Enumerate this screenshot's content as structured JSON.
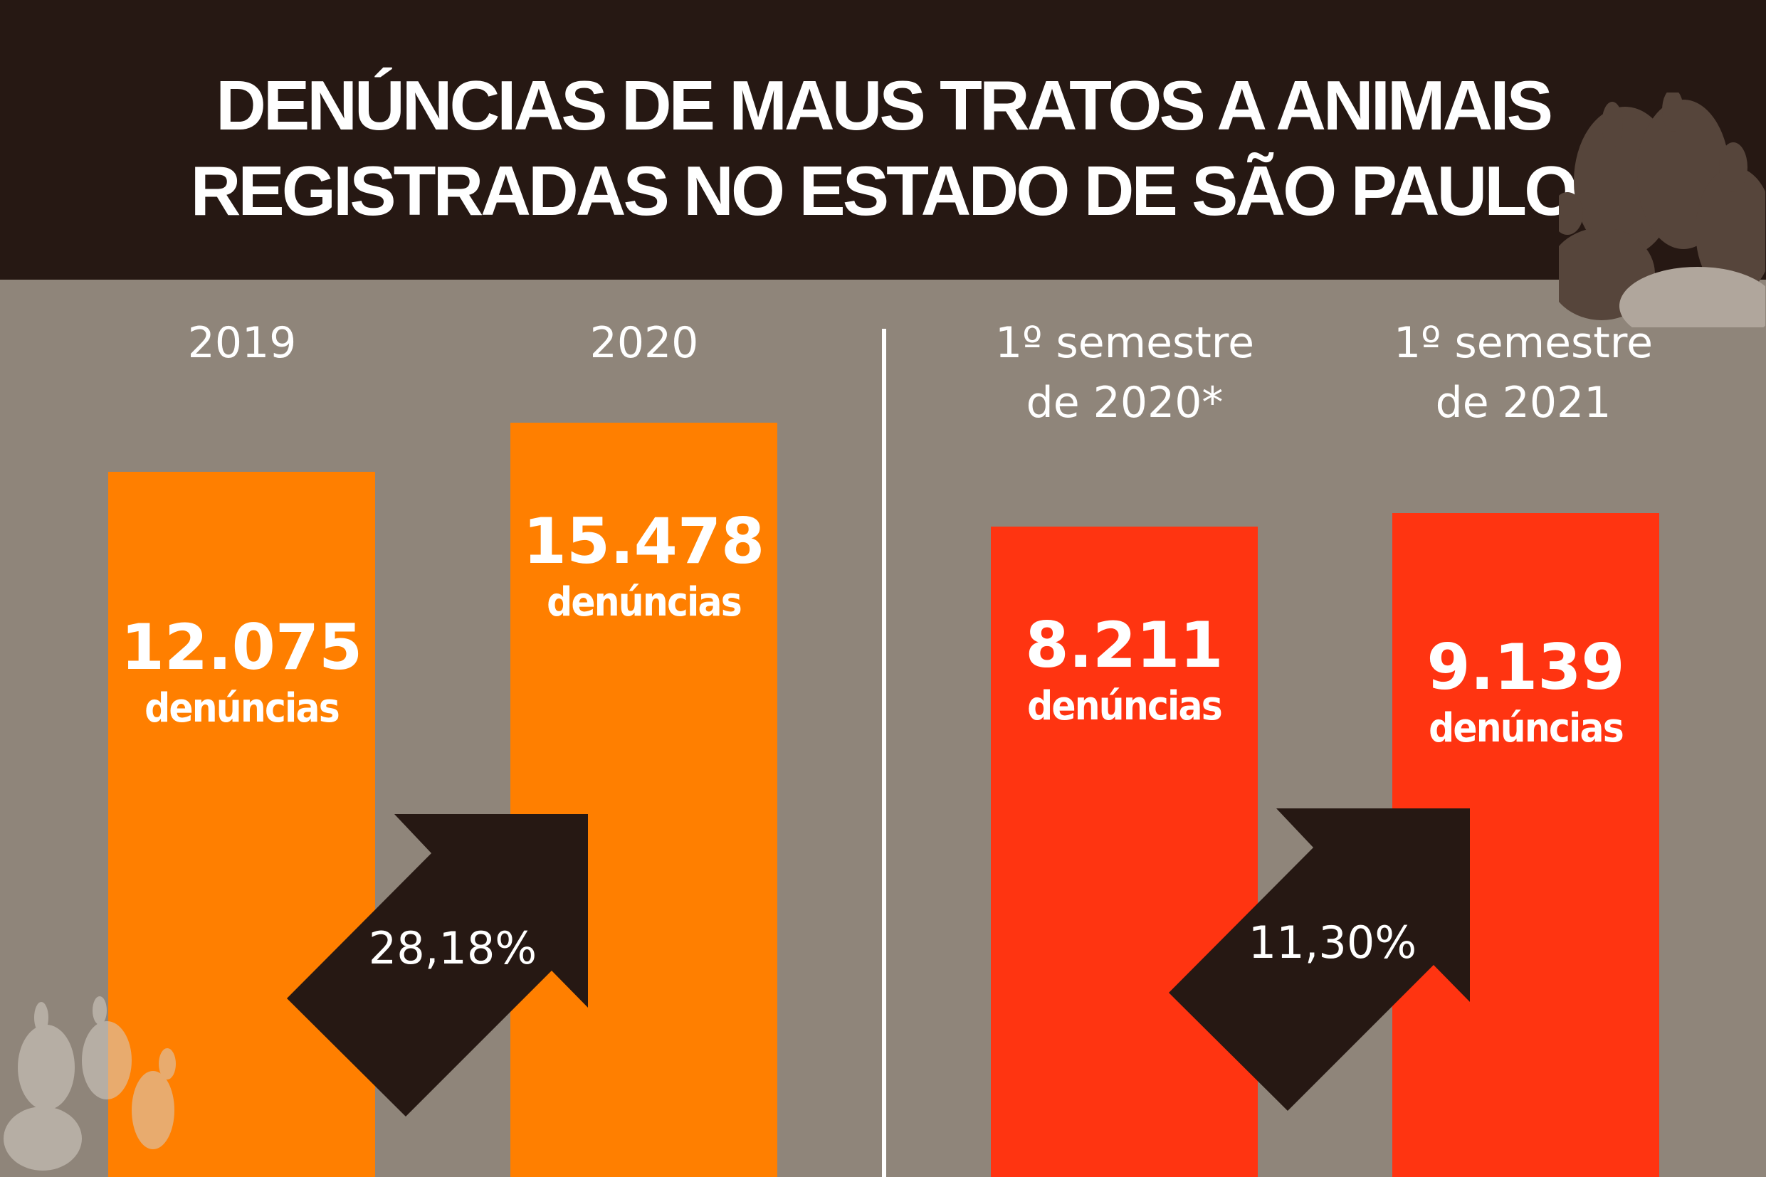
{
  "title_lines": [
    "DENÚNCIAS DE MAUS TRATOS A ANIMAIS",
    "REGISTRADAS NO ESTADO DE SÃO PAULO"
  ],
  "colors": {
    "header": "#261813",
    "background": "#8f857a",
    "annual": "#ff7f00",
    "semester": "#ff3411",
    "arrow": "#261813"
  },
  "chart_data": {
    "type": "bar",
    "title": "DENÚNCIAS DE MAUS TRATOS A ANIMAIS REGISTRADAS NO ESTADO DE SÃO PAULO",
    "groups": [
      {
        "categories": [
          "2019",
          "2020"
        ],
        "values": [
          12075,
          15478
        ],
        "labels": [
          "12.075",
          "15.478"
        ],
        "change": "28,18%"
      },
      {
        "categories": [
          "1º semestre de 2020*",
          "1º semestre de 2021"
        ],
        "values": [
          8211,
          9139
        ],
        "labels": [
          "8.211",
          "9.139"
        ],
        "change": "11,30%"
      }
    ],
    "cat_lines": [
      [
        "2019"
      ],
      [
        "2020"
      ],
      [
        "1º semestre",
        "de 2020*"
      ],
      [
        "1º semestre",
        "de 2021"
      ]
    ],
    "unit_label": "denúncias",
    "xlabel": "",
    "ylabel": ""
  }
}
